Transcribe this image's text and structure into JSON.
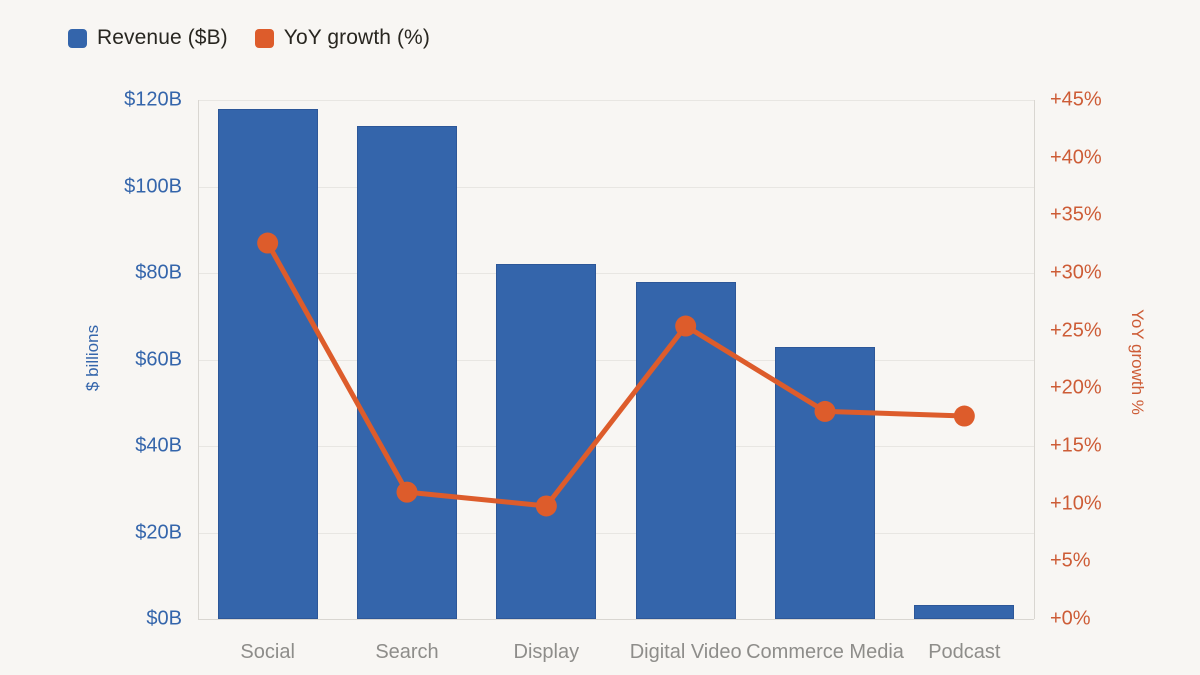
{
  "legend": {
    "items": [
      {
        "label": "Revenue ($B)",
        "color": "#3465ab",
        "icon": "revenue-swatch-icon"
      },
      {
        "label": "YoY growth (%)",
        "color": "#dd5c2b",
        "icon": "yoy-growth-swatch-icon"
      }
    ]
  },
  "chart_data": {
    "type": "bar",
    "subtype": "combo-bar-line-dual-axis",
    "categories": [
      "Social",
      "Search",
      "Display",
      "Digital Video",
      "Commerce Media",
      "Podcast"
    ],
    "series": [
      {
        "name": "Revenue ($B)",
        "type": "bar",
        "axis": "left",
        "color": "#3465ab",
        "values": [
          118,
          114,
          82,
          78,
          63,
          3.2
        ]
      },
      {
        "name": "YoY growth (%)",
        "type": "line",
        "axis": "right",
        "color": "#dd5c2b",
        "values": [
          32.6,
          11,
          9.8,
          25.4,
          18,
          17.6
        ]
      }
    ],
    "left_axis": {
      "title": "$ billions",
      "min": 0,
      "max": 120,
      "step": 20,
      "tick_labels": [
        "$0B",
        "$20B",
        "$40B",
        "$60B",
        "$80B",
        "$100B",
        "$120B"
      ],
      "color": "#3465ab"
    },
    "right_axis": {
      "title": "YoY growth %",
      "min": 0,
      "max": 45,
      "step": 5,
      "tick_labels": [
        "+0%",
        "+5%",
        "+10%",
        "+15%",
        "+20%",
        "+25%",
        "+30%",
        "+35%",
        "+40%",
        "+45%"
      ],
      "color": "#cd5c36"
    },
    "grid": true,
    "legend_position": "top-left"
  },
  "colors": {
    "background": "#f8f6f3",
    "grid": "#e8e6e2",
    "axis_line": "#d9d6d1",
    "category_label": "#8e8d8a",
    "legend_text": "#282620"
  }
}
